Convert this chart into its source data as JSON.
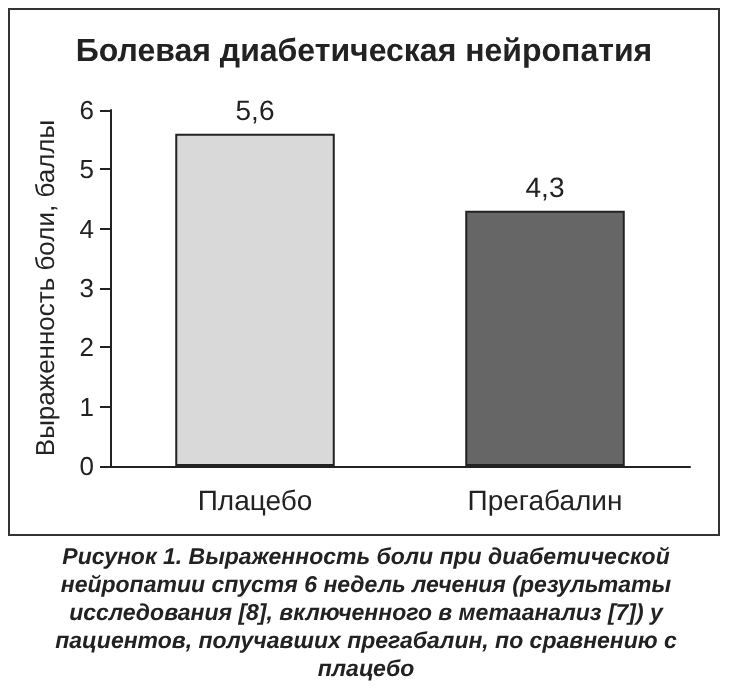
{
  "chart_data": {
    "type": "bar",
    "title": "Болевая диабетическая нейропатия",
    "ylabel": "Выраженность боли, баллы",
    "categories": [
      "Плацебо",
      "Прегабалин"
    ],
    "values": [
      5.6,
      4.3
    ],
    "colors": [
      "#d9d9d9",
      "#666666"
    ],
    "value_labels": [
      "5,6",
      "4,3"
    ],
    "ylim": [
      0,
      6
    ],
    "yticks": [
      0,
      1,
      2,
      3,
      4,
      5,
      6
    ],
    "grid": false,
    "annotations": [
      "Рисунок 1. Выраженность боли при диабетической нейропатии спустя 6 недель лечения (результаты исследования [8], включенного в метаанализ [7]) у пациентов, получавших прегабалин, по сравнению с плацебо"
    ]
  }
}
